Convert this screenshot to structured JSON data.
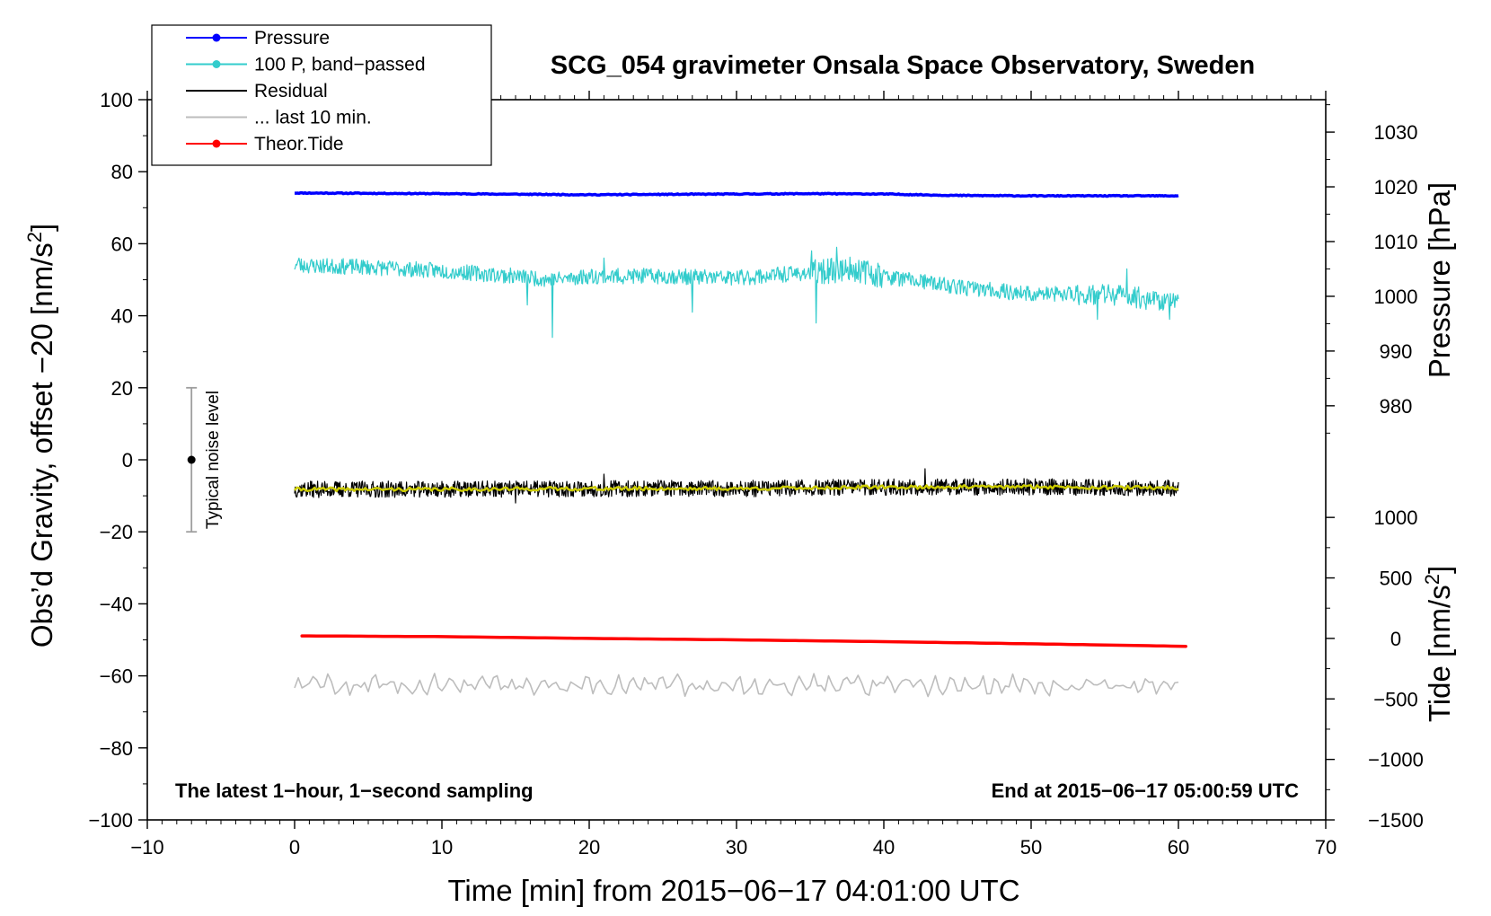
{
  "chart_data": {
    "type": "line",
    "title": "SCG_054 gravimeter Onsala Space Observatory, Sweden",
    "xlabel": "Time [min] from 2015−06−17 04:01:00 UTC",
    "ylabel_left_main": "Obs’d Gravity, offset −20 [nm/s",
    "ylabel_left_sup": "2",
    "ylabel_left_close": "]",
    "ylabel_right_pressure": "Pressure [hPa]",
    "ylabel_right_tide_main": "Tide [nm/s",
    "ylabel_right_tide_sup": "2",
    "ylabel_right_tide_close": "]",
    "xlim": [
      -10,
      70
    ],
    "ylim_left": [
      -100,
      100
    ],
    "x_ticks": [
      -10,
      0,
      10,
      20,
      30,
      40,
      50,
      60,
      70
    ],
    "x_tick_labels": [
      "−10",
      "0",
      "10",
      "20",
      "30",
      "40",
      "50",
      "60",
      "70"
    ],
    "y_ticks_left": [
      -100,
      -80,
      -60,
      -40,
      -20,
      0,
      20,
      40,
      60,
      80,
      100
    ],
    "y_tick_labels_left": [
      "−100",
      "−80",
      "−60",
      "−40",
      "−20",
      "0",
      "20",
      "40",
      "60",
      "80",
      "100"
    ],
    "pressure_axis": {
      "ticks": [
        980,
        990,
        1000,
        1010,
        1020,
        1030
      ],
      "tick_labels": [
        "980",
        "990",
        "1000",
        "1010",
        "1020",
        "1030"
      ],
      "left_equiv": [
        [
          980,
          15
        ],
        [
          1030,
          91
        ]
      ]
    },
    "tide_axis": {
      "ticks": [
        -1500,
        -1000,
        -500,
        0,
        500,
        1000
      ],
      "tick_labels": [
        "−1500",
        "−1000",
        "−500",
        "0",
        "500",
        "1000"
      ],
      "left_equiv": [
        [
          -1500,
          -100
        ],
        [
          1000,
          -16
        ]
      ]
    },
    "grid": false,
    "legend_position": "top-left, outside plot",
    "legend": [
      {
        "label": "Pressure",
        "color": "#0000ff",
        "marker": true
      },
      {
        "label": "100 P, band−passed",
        "color": "#33cccc",
        "marker": true
      },
      {
        "label": "Residual",
        "color": "#000000",
        "marker": false
      },
      {
        "label": "... last 10 min.",
        "color": "#bdbdbd",
        "marker": false
      },
      {
        "label": "Theor.Tide",
        "color": "#ff0000",
        "marker": true
      }
    ],
    "series": [
      {
        "name": "Pressure",
        "color": "#0000ff",
        "width": 3.5,
        "x": [
          0,
          10,
          20,
          30,
          35,
          40,
          45,
          50,
          55,
          60
        ],
        "y": [
          74.1,
          73.9,
          73.6,
          73.8,
          73.9,
          73.8,
          73.4,
          73.3,
          73.3,
          73.3
        ]
      },
      {
        "name": "100 P, band−passed",
        "color": "#33cccc",
        "width": 1.2,
        "x": [
          0,
          5,
          10,
          15,
          17.5,
          20,
          25,
          30,
          35,
          38,
          40,
          45,
          50,
          55,
          60
        ],
        "y": [
          54,
          53.5,
          52.5,
          51,
          50,
          51,
          51,
          50.5,
          52,
          53,
          51,
          48,
          46,
          46,
          44
        ],
        "spikes": [
          [
            0.3,
            56
          ],
          [
            15.8,
            43
          ],
          [
            17.5,
            34
          ],
          [
            21,
            56
          ],
          [
            27,
            41
          ],
          [
            35.1,
            58
          ],
          [
            35.4,
            38
          ],
          [
            36.8,
            59
          ],
          [
            54.5,
            39
          ],
          [
            56.5,
            53
          ],
          [
            59.4,
            39
          ]
        ]
      },
      {
        "name": "Residual",
        "color": "#000000",
        "width": 1.2,
        "x": [
          0,
          10,
          20,
          30,
          40,
          50,
          60
        ],
        "y": [
          -8.2,
          -8.2,
          -8.0,
          -8.0,
          -7.6,
          -7.5,
          -7.8
        ],
        "spikes": [
          [
            21,
            -4
          ],
          [
            42.8,
            -2.5
          ],
          [
            15,
            -12
          ]
        ]
      },
      {
        "name": "Residual (smoothed)",
        "color": "#cccc00",
        "width": 2.5,
        "x": [
          0,
          10,
          20,
          30,
          40,
          50,
          60
        ],
        "y": [
          -8.2,
          -8.2,
          -8.0,
          -8.0,
          -7.6,
          -7.5,
          -7.8
        ]
      },
      {
        "name": "... last 10 min.",
        "color": "#bdbdbd",
        "width": 1.6,
        "x": [
          0,
          60
        ],
        "y": [
          -62.5,
          -62.5
        ],
        "amplitude": 2.5
      },
      {
        "name": "Theor.Tide",
        "color": "#ff0000",
        "width": 3.5,
        "x": [
          0.5,
          10,
          20,
          30,
          40,
          50,
          60.5
        ],
        "y": [
          -48.9,
          -49.1,
          -49.6,
          -50.0,
          -50.5,
          -51.1,
          -51.8
        ]
      }
    ],
    "noise_bar": {
      "label": "Typical noise level",
      "x": -7,
      "center": 0,
      "low": -20,
      "high": 20
    },
    "annotations": {
      "left": "The latest 1−hour, 1−second sampling",
      "right": "End at 2015−06−17 05:00:59 UTC"
    }
  }
}
